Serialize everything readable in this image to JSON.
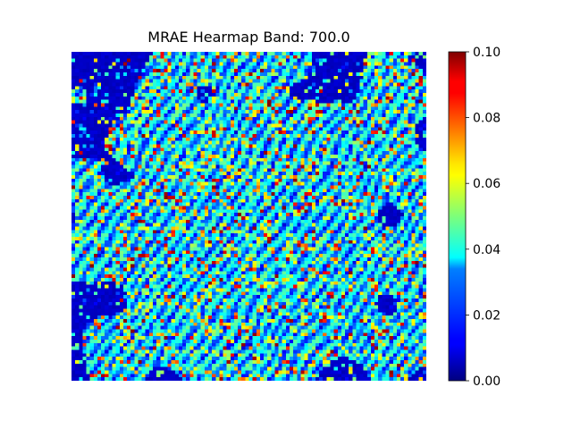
{
  "chart_data": {
    "type": "heatmap",
    "title": "MRAE Hearmap Band: 700.0",
    "xlabel": "",
    "ylabel": "",
    "colormap": "jet",
    "colorbar": {
      "min": 0.0,
      "max": 0.1,
      "ticks": [
        0.0,
        0.02,
        0.04,
        0.06,
        0.08,
        0.1
      ],
      "tick_labels": [
        "0.00",
        "0.02",
        "0.04",
        "0.06",
        "0.08",
        "0.10"
      ]
    },
    "grid_size": [
      96,
      96
    ],
    "axes_visible": false,
    "description_note": "",
    "value_summary": {
      "background_value": 0.005,
      "max_value": 0.1
    }
  }
}
